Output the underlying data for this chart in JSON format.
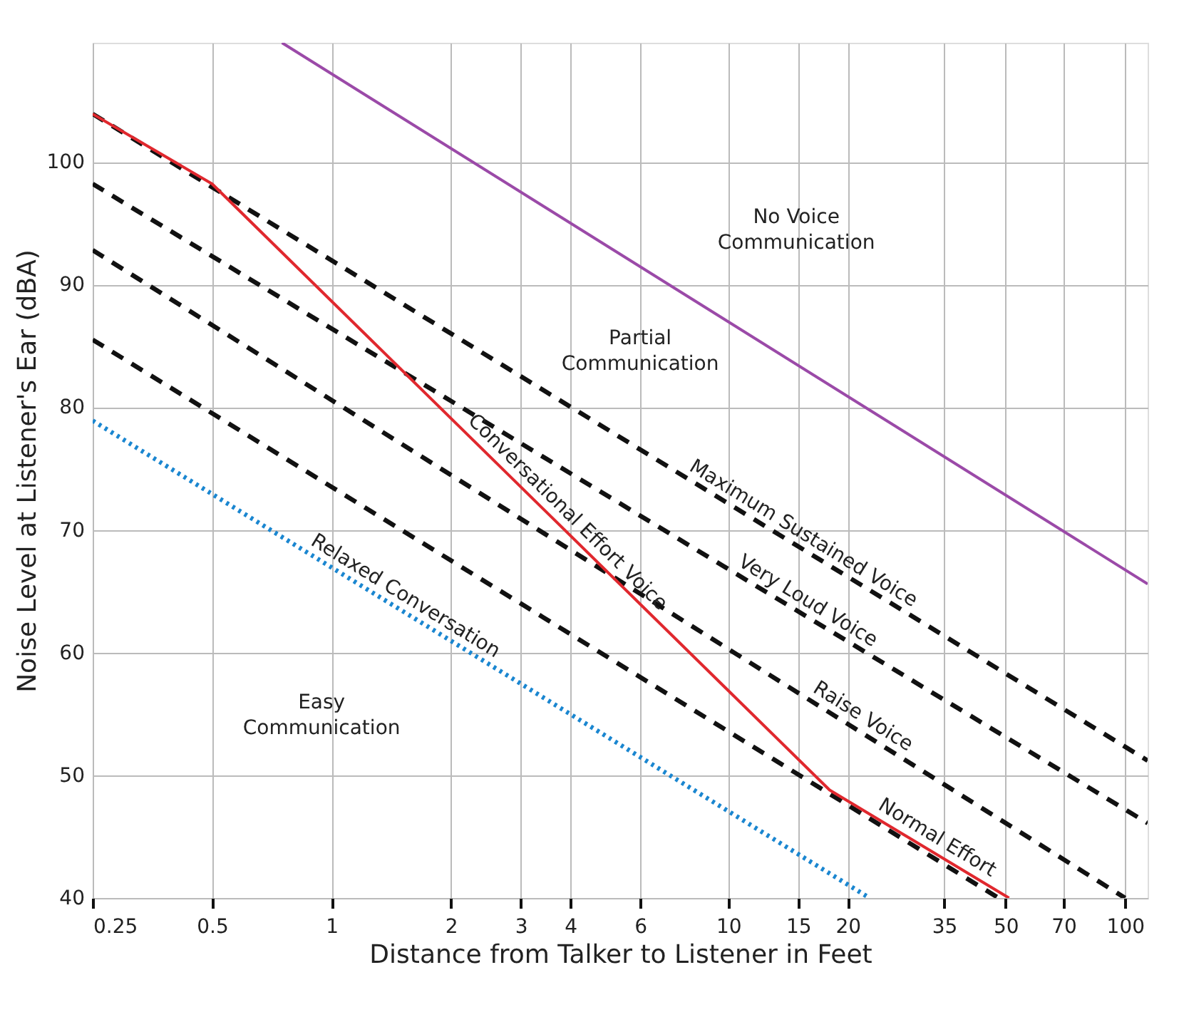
{
  "chart_data": {
    "type": "line",
    "xlabel": "Distance from Talker to Listener in Feet",
    "ylabel": "Noise Level at Listener's Ear (dBA)",
    "log": "x",
    "xlim": [
      0.25,
      114
    ],
    "ylim": [
      40,
      109.7
    ],
    "xticks": [
      0.25,
      0.5,
      1,
      2,
      3,
      4,
      6,
      10,
      15,
      20,
      35,
      50,
      70,
      100
    ],
    "yticks": [
      40,
      50,
      60,
      70,
      80,
      90,
      100
    ],
    "grid": true,
    "legend": false,
    "marker": "none",
    "series": [
      {
        "color": "#9b4aa8",
        "line_style": "solid",
        "x": [
          0.75,
          114
        ],
        "values": [
          109.7,
          65.6
        ]
      },
      {
        "color": "#111111",
        "line_style": "dashed",
        "x": [
          0.25,
          114
        ],
        "values": [
          103.9,
          51.2
        ]
      },
      {
        "color": "#111111",
        "line_style": "dashed",
        "x": [
          0.25,
          114
        ],
        "values": [
          98.2,
          46.1
        ]
      },
      {
        "color": "#111111",
        "line_style": "dashed",
        "x": [
          0.25,
          100
        ],
        "values": [
          92.8,
          40
        ]
      },
      {
        "color": "#111111",
        "line_style": "dashed",
        "x": [
          0.25,
          48
        ],
        "values": [
          85.5,
          40
        ]
      },
      {
        "color": "#e0282e",
        "line_style": "solid",
        "x": [
          0.25,
          0.5,
          18,
          51
        ],
        "values": [
          103.9,
          98.2,
          48.8,
          40
        ]
      },
      {
        "color": "#1a86d0",
        "line_style": "dotted",
        "x": [
          0.25,
          22.7
        ],
        "values": [
          78.9,
          40
        ]
      }
    ],
    "annotations": [
      "No Voice Communication",
      "Partial Communication",
      "Easy Communication",
      {
        "text": "Maximum Sustained Voice",
        "x": 14.8,
        "y": 68.7
      },
      {
        "text": "Very Loud Voice",
        "x": 15.2,
        "y": 63.2
      },
      {
        "text": "Raise Voice",
        "x": 20.9,
        "y": 53.8
      },
      {
        "text": "Normal Effort",
        "x": 32.2,
        "y": 43.9
      },
      {
        "text": "Conversational Effort Voice",
        "x": 3.71,
        "y": 70.6
      },
      {
        "text": "Relaxed Conversation",
        "x": 1.47,
        "y": 63.6
      }
    ]
  }
}
